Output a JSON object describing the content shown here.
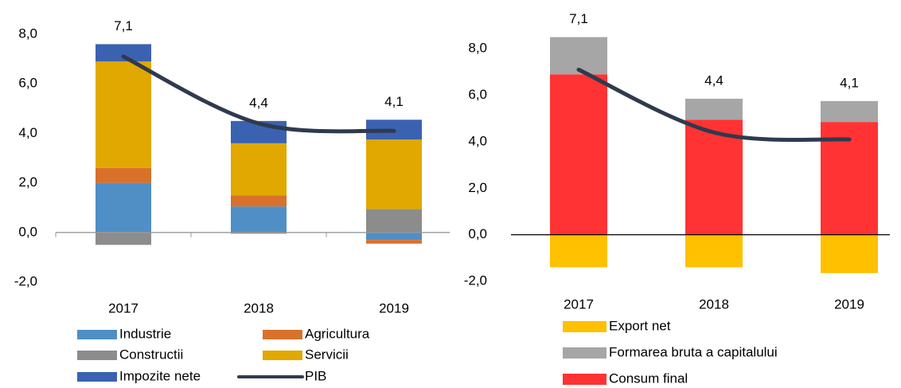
{
  "chart_data": [
    {
      "type": "bar",
      "stacked": true,
      "categories": [
        "2017",
        "2018",
        "2019"
      ],
      "ylim": [
        -2,
        8
      ],
      "yticks": [
        {
          "value": -2,
          "label": "-2,0"
        },
        {
          "value": 0,
          "label": "0,0"
        },
        {
          "value": 2,
          "label": "2,0"
        },
        {
          "value": 4,
          "label": "4,0"
        },
        {
          "value": 6,
          "label": "6,0"
        },
        {
          "value": 8,
          "label": "8,0"
        }
      ],
      "series": [
        {
          "name": "Industrie",
          "color": "#4f8fc6",
          "values": [
            2.0,
            1.05,
            -0.3
          ]
        },
        {
          "name": "Agricultura",
          "color": "#d9712b",
          "values": [
            0.6,
            0.45,
            -0.15
          ]
        },
        {
          "name": "Constructii",
          "color": "#8c8c8c",
          "values": [
            -0.5,
            -0.05,
            0.95
          ]
        },
        {
          "name": "Servicii",
          "color": "#e0a800",
          "values": [
            4.3,
            2.1,
            2.8
          ]
        },
        {
          "name": "Impozite nete",
          "color": "#3a62b0",
          "values": [
            0.7,
            0.9,
            0.8
          ]
        },
        {
          "name": "PIB",
          "type": "line",
          "color": "#2f3a4e",
          "values": [
            7.1,
            4.4,
            4.1
          ],
          "value_labels": [
            "7,1",
            "4,4",
            "4,1"
          ]
        }
      ]
    },
    {
      "type": "bar",
      "stacked": true,
      "categories": [
        "2017",
        "2018",
        "2019"
      ],
      "ylim": [
        -2,
        9
      ],
      "yticks": [
        {
          "value": -2,
          "label": "-2,0"
        },
        {
          "value": 0,
          "label": "0,0"
        },
        {
          "value": 2,
          "label": "2,0"
        },
        {
          "value": 4,
          "label": "4,0"
        },
        {
          "value": 6,
          "label": "6,0"
        },
        {
          "value": 8,
          "label": "8,0"
        }
      ],
      "series": [
        {
          "name": "Consum final",
          "color": "#ff3333",
          "values": [
            6.9,
            4.95,
            4.85
          ]
        },
        {
          "name": "Formarea bruta a capitalului",
          "color": "#a6a6a6",
          "values": [
            1.6,
            0.9,
            0.9
          ]
        },
        {
          "name": "Export net",
          "color": "#ffc000",
          "values": [
            -1.4,
            -1.4,
            -1.65
          ]
        }
      ],
      "line": {
        "color": "#2f3a4e",
        "values": [
          7.1,
          4.4,
          4.1
        ],
        "value_labels": [
          "7,1",
          "4,4",
          "4,1"
        ]
      }
    }
  ]
}
